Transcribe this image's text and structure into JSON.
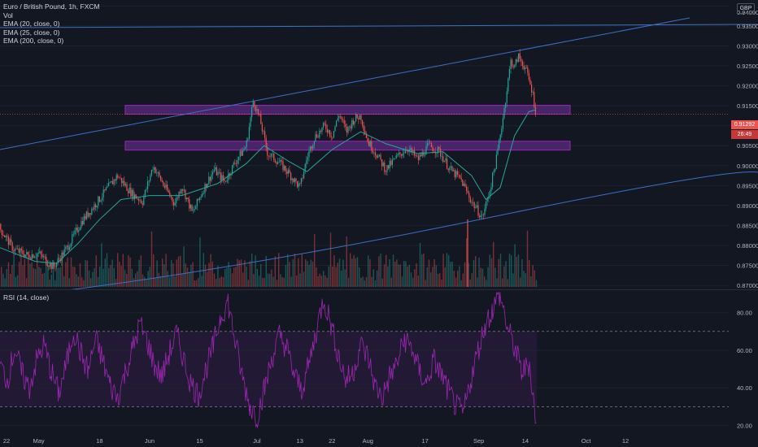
{
  "chart": {
    "symbol_title": "Euro / British Pound, 1h, FXCM",
    "currency_button": "GBP",
    "studies": [
      "Vol",
      "EMA (20, close, 0)",
      "EMA (25, close, 0)",
      "EMA (200, close, 0)"
    ],
    "rsi_title": "RSI (14, close)",
    "last_price": "0.91292",
    "countdown": "26:49",
    "colors": {
      "background": "#131722",
      "up": "#26a69a",
      "down": "#ef5350",
      "trendline": "#3d6fc6",
      "zone_fill": "#5b2a80",
      "zone_border": "#9c27b0",
      "ema": "#26a69a",
      "rsi": "#9c27b0"
    }
  },
  "chart_data": [
    {
      "type": "candlestick",
      "title": "Euro / British Pound, 1h, FXCM",
      "x_ticks": [
        "22",
        "May",
        "18",
        "Jun",
        "15",
        "Jul",
        "13",
        "22",
        "Aug",
        "17",
        "Sep",
        "14",
        "Oct",
        "12"
      ],
      "y_ticks": [
        0.87,
        0.875,
        0.88,
        0.885,
        0.89,
        0.895,
        0.9,
        0.905,
        0.91,
        0.915,
        0.92,
        0.925,
        0.93,
        0.935,
        0.94
      ],
      "ylim": [
        0.869,
        0.9415
      ],
      "close_path": [
        {
          "x": "Apr 20",
          "y": 0.8845
        },
        {
          "x": "Apr 24",
          "y": 0.879
        },
        {
          "x": "Apr 28",
          "y": 0.8775
        },
        {
          "x": "May 1",
          "y": 0.878
        },
        {
          "x": "May 5",
          "y": 0.8745
        },
        {
          "x": "May 9",
          "y": 0.8795
        },
        {
          "x": "May 13",
          "y": 0.886
        },
        {
          "x": "May 17",
          "y": 0.8905
        },
        {
          "x": "May 20",
          "y": 0.894
        },
        {
          "x": "May 23",
          "y": 0.8975
        },
        {
          "x": "May 27",
          "y": 0.893
        },
        {
          "x": "May 30",
          "y": 0.891
        },
        {
          "x": "Jun 2",
          "y": 0.9
        },
        {
          "x": "Jun 5",
          "y": 0.895
        },
        {
          "x": "Jun 8",
          "y": 0.8905
        },
        {
          "x": "Jun 10",
          "y": 0.895
        },
        {
          "x": "Jun 13",
          "y": 0.888
        },
        {
          "x": "Jun 16",
          "y": 0.894
        },
        {
          "x": "Jun 19",
          "y": 0.899
        },
        {
          "x": "Jun 22",
          "y": 0.896
        },
        {
          "x": "Jun 25",
          "y": 0.901
        },
        {
          "x": "Jun 28",
          "y": 0.905
        },
        {
          "x": "Jun 30",
          "y": 0.9165
        },
        {
          "x": "Jul 2",
          "y": 0.911
        },
        {
          "x": "Jul 4",
          "y": 0.903
        },
        {
          "x": "Jul 7",
          "y": 0.901
        },
        {
          "x": "Jul 10",
          "y": 0.898
        },
        {
          "x": "Jul 13",
          "y": 0.8945
        },
        {
          "x": "Jul 15",
          "y": 0.902
        },
        {
          "x": "Jul 17",
          "y": 0.907
        },
        {
          "x": "Jul 20",
          "y": 0.91
        },
        {
          "x": "Jul 22",
          "y": 0.9075
        },
        {
          "x": "Jul 24",
          "y": 0.913
        },
        {
          "x": "Jul 26",
          "y": 0.9085
        },
        {
          "x": "Jul 28",
          "y": 0.9115
        },
        {
          "x": "Jul 30",
          "y": 0.9125
        },
        {
          "x": "Aug 1",
          "y": 0.906
        },
        {
          "x": "Aug 3",
          "y": 0.9035
        },
        {
          "x": "Aug 6",
          "y": 0.899
        },
        {
          "x": "Aug 9",
          "y": 0.902
        },
        {
          "x": "Aug 12",
          "y": 0.9045
        },
        {
          "x": "Aug 15",
          "y": 0.9015
        },
        {
          "x": "Aug 18",
          "y": 0.905
        },
        {
          "x": "Aug 21",
          "y": 0.9035
        },
        {
          "x": "Aug 24",
          "y": 0.899
        },
        {
          "x": "Aug 27",
          "y": 0.8965
        },
        {
          "x": "Aug 30",
          "y": 0.891
        },
        {
          "x": "Sep 2",
          "y": 0.887
        },
        {
          "x": "Sep 4",
          "y": 0.8935
        },
        {
          "x": "Sep 6",
          "y": 0.902
        },
        {
          "x": "Sep 8",
          "y": 0.9135
        },
        {
          "x": "Sep 10",
          "y": 0.9265
        },
        {
          "x": "Sep 11",
          "y": 0.9245
        },
        {
          "x": "Sep 12",
          "y": 0.9275
        },
        {
          "x": "Sep 14",
          "y": 0.9245
        },
        {
          "x": "Sep 16",
          "y": 0.9185
        },
        {
          "x": "Sep 17",
          "y": 0.9129
        }
      ],
      "ema_path": [
        {
          "x": "Apr 20",
          "y": 0.8795
        },
        {
          "x": "Apr 30",
          "y": 0.876
        },
        {
          "x": "May 6",
          "y": 0.8755
        },
        {
          "x": "May 12",
          "y": 0.8805
        },
        {
          "x": "May 18",
          "y": 0.8865
        },
        {
          "x": "May 24",
          "y": 0.8915
        },
        {
          "x": "Jun 1",
          "y": 0.8925
        },
        {
          "x": "Jun 10",
          "y": 0.8925
        },
        {
          "x": "Jun 20",
          "y": 0.8955
        },
        {
          "x": "Jun 28",
          "y": 0.9005
        },
        {
          "x": "Jul 3",
          "y": 0.905
        },
        {
          "x": "Jul 10",
          "y": 0.901
        },
        {
          "x": "Jul 15",
          "y": 0.8985
        },
        {
          "x": "Jul 22",
          "y": 0.904
        },
        {
          "x": "Jul 30",
          "y": 0.9085
        },
        {
          "x": "Aug 6",
          "y": 0.9055
        },
        {
          "x": "Aug 15",
          "y": 0.903
        },
        {
          "x": "Aug 22",
          "y": 0.9035
        },
        {
          "x": "Aug 30",
          "y": 0.8975
        },
        {
          "x": "Sep 3",
          "y": 0.8915
        },
        {
          "x": "Sep 7",
          "y": 0.8945
        },
        {
          "x": "Sep 11",
          "y": 0.9075
        },
        {
          "x": "Sep 15",
          "y": 0.9135
        },
        {
          "x": "Sep 17",
          "y": 0.914
        }
      ],
      "zones": [
        {
          "from": "Jun 1",
          "to": "Sep 22",
          "y_low": 0.9135,
          "y_high": 0.9145
        },
        {
          "from": "Jun 1",
          "to": "Sep 22",
          "y_low": 0.9045,
          "y_high": 0.9055
        }
      ]
    },
    {
      "type": "line",
      "title": "RSI (14, close)",
      "y_ticks": [
        20,
        40,
        60,
        80
      ],
      "ylim": [
        15,
        92
      ],
      "bands": [
        30,
        70
      ],
      "values": [
        52,
        44,
        61,
        47,
        40,
        55,
        63,
        48,
        37,
        52,
        71,
        58,
        49,
        66,
        54,
        41,
        35,
        48,
        60,
        74,
        65,
        52,
        46,
        58,
        69,
        55,
        42,
        36,
        50,
        62,
        78,
        86,
        64,
        45,
        30,
        25,
        40,
        56,
        68,
        61,
        47,
        39,
        52,
        70,
        88,
        74,
        58,
        44,
        48,
        63,
        57,
        41,
        35,
        46,
        53,
        66,
        61,
        49,
        42,
        55,
        47,
        38,
        30,
        26,
        44,
        60,
        74,
        82,
        90,
        72,
        61,
        48,
        53,
        18
      ]
    }
  ]
}
